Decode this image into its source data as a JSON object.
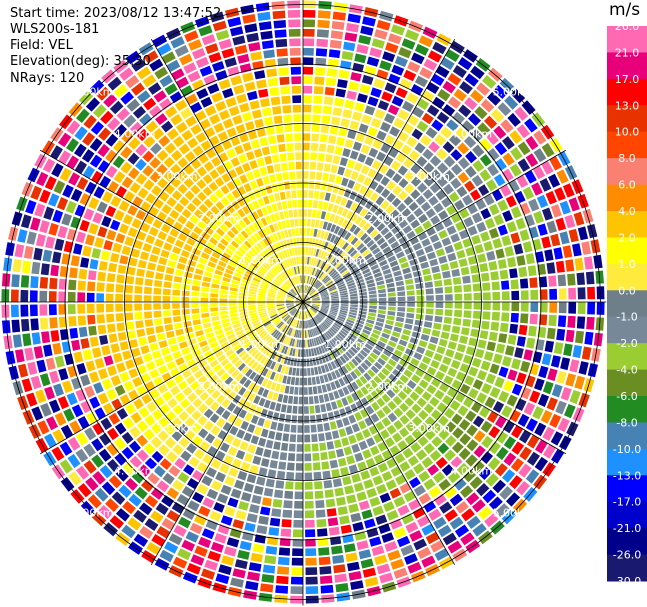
{
  "header": {
    "start_time": "Start time: 2023/08/12 13:47:52",
    "instrument": "WLS200s-181",
    "field": "Field: VEL",
    "elevation": "Elevation(deg): 35.30",
    "nrays": "NRays: 120"
  },
  "colorbar": {
    "unit": "m/s",
    "labels": [
      "26.0",
      "21.0",
      "17.0",
      "13.0",
      "10.0",
      "8.0",
      "6.0",
      "4.0",
      "2.0",
      "1.0",
      "0.0",
      "-1.0",
      "-2.0",
      "-4.0",
      "-6.0",
      "-8.0",
      "-10.0",
      "-13.0",
      "-17.0",
      "-21.0",
      "-26.0",
      "-30.0"
    ],
    "colors": [
      "#ff69b4",
      "#e8007a",
      "#ff0000",
      "#e83200",
      "#ff4500",
      "#fa8072",
      "#ff8c00",
      "#ffc400",
      "#ffff00",
      "#ffeb3b",
      "#6e7f8a",
      "#778899",
      "#9acd32",
      "#6b8e23",
      "#228b22",
      "#4682b4",
      "#1e90ff",
      "#0000ff",
      "#0000cd",
      "#00008b",
      "#191970"
    ]
  },
  "chart_data": {
    "type": "heatmap",
    "subtype": "polar PPI (plan position indicator) scan",
    "field": "VEL",
    "units": "m/s",
    "n_rays": 120,
    "elevation_deg": 35.3,
    "range_rings_km": [
      1.0,
      2.0,
      3.0,
      4.0,
      5.0
    ],
    "range_ring_labels": [
      "1.00km",
      "2.00km",
      "3.00km",
      "4.00km",
      "5.00km"
    ],
    "spokes_deg": [
      0,
      30,
      60,
      90,
      120,
      150,
      180,
      210,
      240,
      270,
      300,
      330
    ],
    "value_range": [
      -30,
      26
    ],
    "pattern": {
      "near_range_km": [
        0.0,
        3.0
      ],
      "north_west_sector": "positive (yellow, ~1 to 2 m/s)",
      "south_east_sector": "negative (green, ~-1 to -4 m/s)",
      "transition": "grey (~0 m/s)",
      "far_range_km": [
        3.0,
        5.8
      ],
      "far_range": "noisy speckle spanning full colour scale"
    }
  }
}
